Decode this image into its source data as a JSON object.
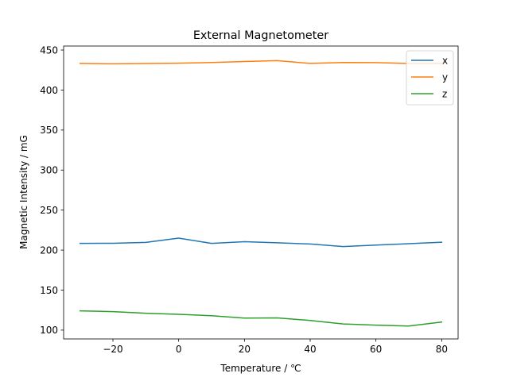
{
  "chart_data": {
    "type": "line",
    "title": "External Magnetometer",
    "xlabel": "Temperature / ℃",
    "ylabel": "Magnetic Intensity / mG",
    "xlim": [
      -35,
      85
    ],
    "ylim": [
      89,
      455
    ],
    "xticks": [
      -20,
      0,
      20,
      40,
      60,
      80
    ],
    "xtick_labels": [
      "−20",
      "0",
      "20",
      "40",
      "60",
      "80"
    ],
    "yticks": [
      100,
      150,
      200,
      250,
      300,
      350,
      400,
      450
    ],
    "ytick_labels": [
      "100",
      "150",
      "200",
      "250",
      "300",
      "350",
      "400",
      "450"
    ],
    "x": [
      -30,
      -20,
      -10,
      0,
      10,
      20,
      30,
      40,
      50,
      60,
      70,
      80
    ],
    "grid": false,
    "legend": "top-right",
    "series": [
      {
        "name": "x",
        "color": "#1f77b4",
        "values": [
          208.4,
          208.5,
          209.6,
          215.0,
          208.4,
          210.5,
          209.1,
          207.6,
          204.4,
          206.3,
          208.0,
          209.8
        ]
      },
      {
        "name": "y",
        "color": "#ff7f0e",
        "values": [
          433.3,
          432.8,
          433.2,
          433.5,
          434.4,
          435.6,
          436.8,
          433.3,
          434.4,
          434.3,
          433.2,
          433.3
        ]
      },
      {
        "name": "z",
        "color": "#2ca02c",
        "values": [
          124.1,
          123.1,
          121.1,
          119.8,
          118.0,
          115.0,
          115.3,
          112.1,
          107.7,
          106.2,
          105.1,
          110.1
        ]
      }
    ]
  }
}
